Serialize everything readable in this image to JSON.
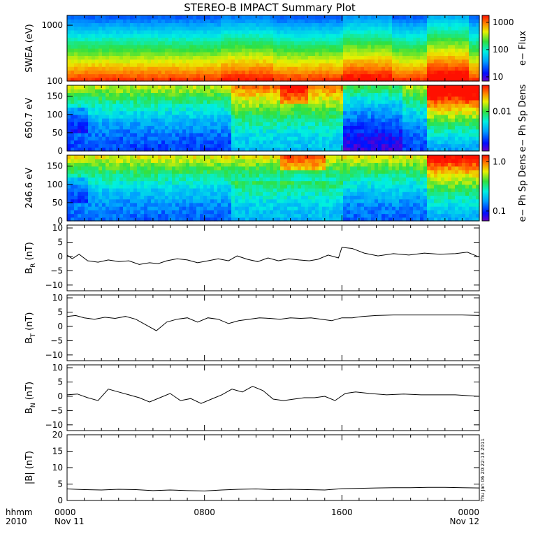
{
  "title": "STEREO-B IMPACT Summary Plot",
  "timestamp": "Thu Jan 06 20:22:13 2011",
  "xaxis": {
    "hhmm_label": "hhmm",
    "year_label": "2010",
    "ticks": [
      {
        "hours": 0,
        "label": "0000",
        "date": "Nov 11"
      },
      {
        "hours": 8,
        "label": "0800",
        "date": ""
      },
      {
        "hours": 16,
        "label": "1600",
        "date": ""
      },
      {
        "hours": 24,
        "label": "0000",
        "date": "Nov 12"
      }
    ],
    "range_hours": [
      0,
      24
    ]
  },
  "chart_data": [
    {
      "type": "heatmap",
      "ylabel": "SWEA (eV)",
      "yscale": "log",
      "ylim": [
        100,
        1500
      ],
      "yticks": [
        "1000",
        "100"
      ],
      "ytick_values": [
        1000,
        100
      ],
      "colorbar": {
        "label": "e− Flux",
        "scale": "log",
        "range": [
          7,
          1800
        ],
        "ticks": [
          "1000",
          "100",
          "10"
        ],
        "tick_values": [
          1000,
          100,
          10
        ]
      }
    },
    {
      "type": "heatmap",
      "ylabel": "650.7 eV",
      "ylim": [
        0,
        180
      ],
      "yticks": [
        "150",
        "100",
        "50",
        "0"
      ],
      "ytick_values": [
        150,
        100,
        50,
        0
      ],
      "colorbar": {
        "label": "e− Ph Sp Dens",
        "scale": "log",
        "ticks": [
          "0.01"
        ]
      }
    },
    {
      "type": "heatmap",
      "ylabel": "246.6 eV",
      "ylim": [
        0,
        180
      ],
      "yticks": [
        "150",
        "100",
        "50",
        "0"
      ],
      "ytick_values": [
        150,
        100,
        50,
        0
      ],
      "colorbar": {
        "label": "e− Ph Sp Dens",
        "scale": "log",
        "ticks": [
          "1.0",
          "0.1"
        ],
        "tick_values": [
          1.0,
          0.1
        ]
      }
    },
    {
      "type": "line",
      "ylabel_main": "B",
      "ylabel_sub": "R",
      "ylabel_unit": " (nT)",
      "ylim": [
        -12,
        11
      ],
      "yticks": [
        "10",
        "5",
        "0",
        "−5",
        "−10"
      ],
      "ytick_values": [
        10,
        5,
        0,
        -5,
        -10
      ],
      "x": [
        0,
        0.3,
        0.7,
        1.2,
        1.8,
        2.4,
        3.0,
        3.6,
        4.2,
        4.8,
        5.3,
        5.8,
        6.4,
        7.0,
        7.6,
        8.2,
        8.8,
        9.4,
        9.9,
        10.5,
        11.1,
        11.7,
        12.3,
        12.9,
        13.5,
        14.1,
        14.6,
        15.2,
        15.8,
        16.0,
        16.6,
        17.3,
        18.1,
        19.0,
        19.9,
        20.8,
        21.7,
        22.6,
        23.3,
        24.0
      ],
      "values": [
        0.5,
        -0.8,
        0.8,
        -1.5,
        -2.0,
        -1.2,
        -1.8,
        -1.5,
        -2.8,
        -2.2,
        -2.5,
        -1.5,
        -0.8,
        -1.2,
        -2.2,
        -1.5,
        -0.8,
        -1.5,
        0.2,
        -1.0,
        -1.8,
        -0.5,
        -1.5,
        -0.8,
        -1.2,
        -1.5,
        -1.0,
        0.5,
        -0.5,
        3.2,
        2.8,
        1.2,
        0.2,
        1.0,
        0.5,
        1.2,
        0.8,
        1.0,
        1.5,
        -0.2
      ]
    },
    {
      "type": "line",
      "ylabel_main": "B",
      "ylabel_sub": "T",
      "ylabel_unit": " (nT)",
      "ylim": [
        -12,
        11
      ],
      "yticks": [
        "10",
        "5",
        "0",
        "−5",
        "−10"
      ],
      "ytick_values": [
        10,
        5,
        0,
        -5,
        -10
      ],
      "x": [
        0,
        0.5,
        1.0,
        1.6,
        2.2,
        2.8,
        3.4,
        4.0,
        4.6,
        5.2,
        5.8,
        6.4,
        7.0,
        7.6,
        8.2,
        8.8,
        9.4,
        10.0,
        10.6,
        11.2,
        11.8,
        12.4,
        13.0,
        13.6,
        14.2,
        14.8,
        15.4,
        16.0,
        16.6,
        17.2,
        18.0,
        19.0,
        20.0,
        21.0,
        22.0,
        23.0,
        24.0
      ],
      "values": [
        3.5,
        3.8,
        3.0,
        2.5,
        3.2,
        2.8,
        3.5,
        2.5,
        0.5,
        -1.5,
        1.5,
        2.5,
        3.0,
        1.5,
        3.0,
        2.5,
        1.0,
        2.0,
        2.5,
        3.0,
        2.8,
        2.5,
        3.0,
        2.8,
        3.0,
        2.5,
        2.0,
        3.0,
        3.0,
        3.5,
        3.8,
        4.0,
        4.0,
        4.0,
        4.0,
        4.0,
        3.8
      ]
    },
    {
      "type": "line",
      "ylabel_main": "B",
      "ylabel_sub": "N",
      "ylabel_unit": " (nT)",
      "ylim": [
        -12,
        11
      ],
      "yticks": [
        "10",
        "5",
        "0",
        "−5",
        "−10"
      ],
      "ytick_values": [
        10,
        5,
        0,
        -5,
        -10
      ],
      "x": [
        0,
        0.6,
        1.2,
        1.8,
        2.4,
        3.0,
        3.6,
        4.2,
        4.8,
        5.4,
        6.0,
        6.6,
        7.2,
        7.8,
        8.4,
        9.0,
        9.6,
        10.2,
        10.8,
        11.4,
        12.0,
        12.6,
        13.2,
        13.8,
        14.4,
        15.0,
        15.6,
        16.2,
        16.8,
        17.6,
        18.6,
        19.6,
        20.6,
        21.6,
        22.6,
        23.4,
        24.0
      ],
      "values": [
        0.5,
        0.8,
        -0.5,
        -1.5,
        2.5,
        1.5,
        0.5,
        -0.5,
        -2.0,
        -0.5,
        1.0,
        -1.5,
        -0.8,
        -2.5,
        -1.0,
        0.5,
        2.5,
        1.5,
        3.5,
        2.0,
        -1.0,
        -1.5,
        -1.0,
        -0.5,
        -0.5,
        0.0,
        -1.5,
        1.0,
        1.5,
        1.0,
        0.5,
        0.8,
        0.5,
        0.5,
        0.5,
        0.2,
        0.0
      ]
    },
    {
      "type": "line",
      "ylabel": "|B| (nT)",
      "ylim": [
        0,
        20
      ],
      "yticks": [
        "20",
        "15",
        "10",
        "5",
        "0"
      ],
      "ytick_values": [
        20,
        15,
        10,
        5,
        0
      ],
      "x": [
        0,
        1,
        2,
        3,
        4,
        5,
        6,
        7,
        8,
        9,
        10,
        11,
        12,
        13,
        14,
        15,
        16,
        17,
        18,
        19,
        20,
        21,
        22,
        23,
        24
      ],
      "values": [
        3.5,
        3.3,
        3.2,
        3.4,
        3.3,
        3.0,
        3.2,
        3.0,
        2.9,
        3.2,
        3.4,
        3.5,
        3.3,
        3.4,
        3.3,
        3.2,
        3.6,
        3.7,
        3.8,
        3.9,
        3.9,
        4.0,
        4.0,
        3.9,
        3.8
      ]
    }
  ]
}
